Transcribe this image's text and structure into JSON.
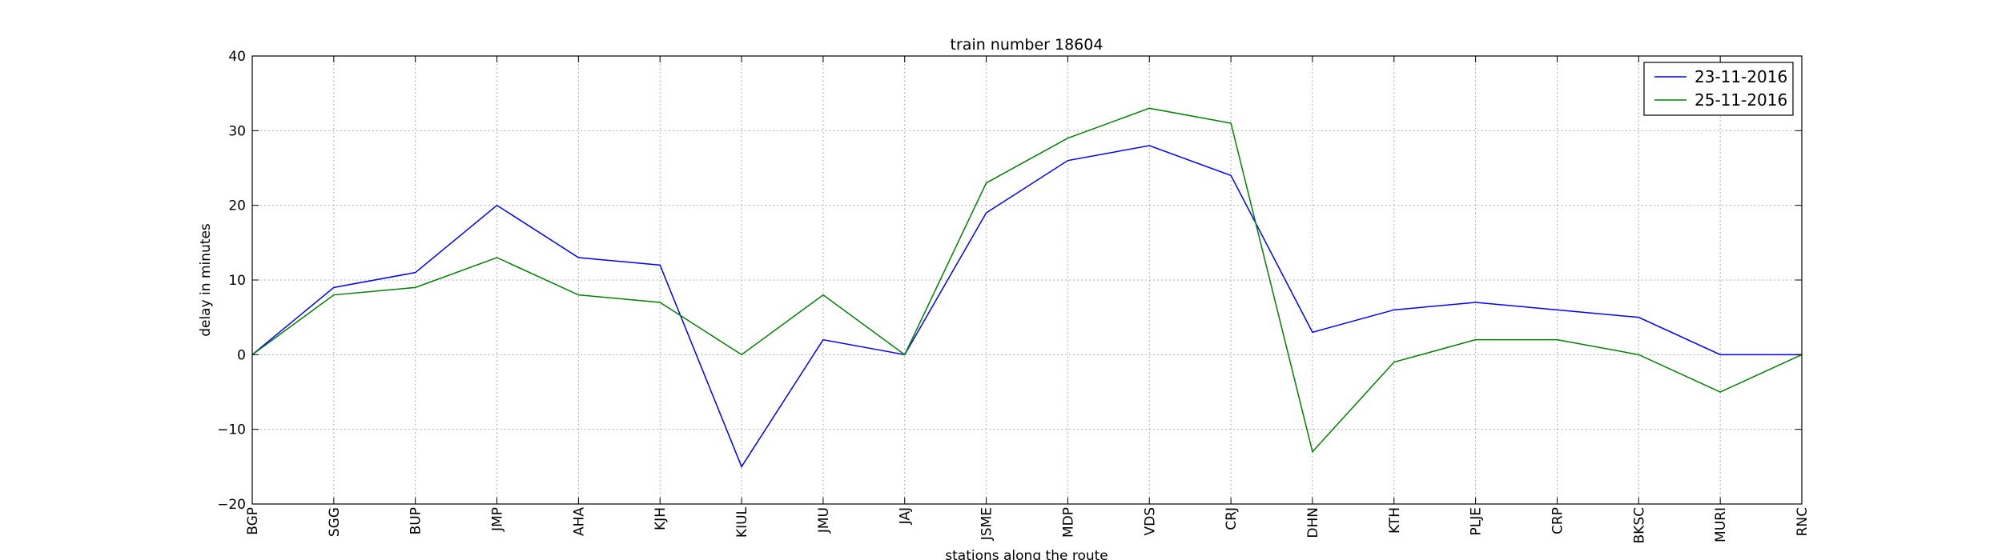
{
  "chart_data": {
    "type": "line",
    "title": "train number 18604",
    "xlabel": "stations along the route",
    "ylabel": "delay in minutes",
    "categories": [
      "BGP",
      "SGG",
      "BUP",
      "JMP",
      "AHA",
      "KJH",
      "KIUL",
      "JMU",
      "JAJ",
      "JSME",
      "MDP",
      "VDS",
      "CRJ",
      "DHN",
      "KTH",
      "PLJE",
      "CRP",
      "BKSC",
      "MURI",
      "RNC"
    ],
    "ylim": [
      -20,
      40
    ],
    "yticks": [
      -20,
      -10,
      0,
      10,
      20,
      30,
      40
    ],
    "ytick_labels": [
      "−20",
      "−10",
      "0",
      "10",
      "20",
      "30",
      "40"
    ],
    "grid": true,
    "legend_position": "top-right",
    "series": [
      {
        "name": "23-11-2016",
        "color": "#0000ff",
        "values": [
          0,
          9,
          11,
          20,
          13,
          12,
          -15,
          2,
          0,
          19,
          26,
          28,
          24,
          3,
          6,
          7,
          6,
          5,
          0,
          0
        ]
      },
      {
        "name": "25-11-2016",
        "color": "#008000",
        "values": [
          0,
          8,
          9,
          13,
          8,
          7,
          0,
          8,
          0,
          23,
          29,
          33,
          31,
          -13,
          -1,
          2,
          2,
          0,
          -5,
          0
        ]
      }
    ]
  }
}
